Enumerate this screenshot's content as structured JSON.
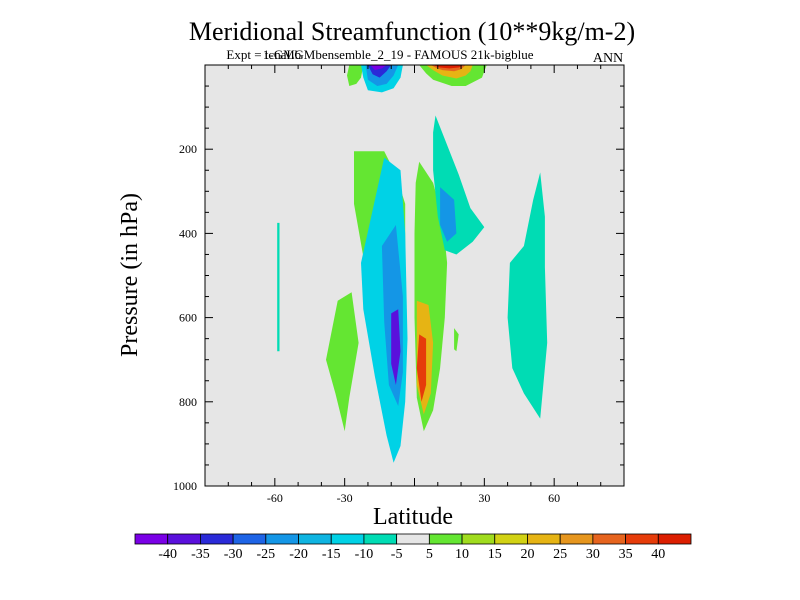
{
  "chart_data": {
    "type": "contour",
    "title": "Meridional Streamfunction (10**9kg/m-2)",
    "subtitle": "Expt = tcnaLGMbensemble_2_19 - FAMOUS 21k-bigblue",
    "subtitle_overlap": "1-GMb",
    "season": "ANN",
    "xlabel": "Latitude",
    "ylabel": "Pressure (in hPa)",
    "xlim": [
      -90,
      90
    ],
    "ylim": [
      1000,
      0
    ],
    "x_ticks": [
      -60,
      -30,
      0,
      30,
      60
    ],
    "x_tick_labels": [
      "-60",
      "-30",
      "",
      "30",
      "60"
    ],
    "y_ticks": [
      200,
      400,
      600,
      800,
      1000
    ],
    "y_tick_labels": [
      "200",
      "400",
      "600",
      "800",
      "1000"
    ],
    "colorbar": {
      "levels": [
        -40,
        -35,
        -30,
        -25,
        -20,
        -15,
        -10,
        -5,
        5,
        10,
        15,
        20,
        25,
        30,
        35,
        40
      ],
      "labels": [
        "-40",
        "-35",
        "-30",
        "-25",
        "-20",
        "-15",
        "-10",
        "-5",
        "5",
        "10",
        "15",
        "20",
        "25",
        "30",
        "35",
        "40"
      ],
      "colors": [
        "#7a00e6",
        "#5a10dc",
        "#2a2ad8",
        "#1e64e6",
        "#1496e6",
        "#0fb4e1",
        "#00d2e6",
        "#00dcb4",
        "#e6e6e6",
        "#64e632",
        "#a0dc1e",
        "#d2d214",
        "#e6b414",
        "#e6961e",
        "#e6641e",
        "#e63c0a",
        "#dc1e00"
      ]
    },
    "regions": [
      {
        "name": "southern-upper-cell-positive",
        "level_index": 9,
        "points": [
          [
            -28,
            0
          ],
          [
            -22,
            0
          ],
          [
            -23,
            30
          ],
          [
            -25,
            45
          ],
          [
            -28,
            50
          ],
          [
            -29,
            25
          ]
        ]
      },
      {
        "name": "southern-upper-cell",
        "level_index": 6,
        "points": [
          [
            -23,
            0
          ],
          [
            -5,
            0
          ],
          [
            -6,
            30
          ],
          [
            -9,
            55
          ],
          [
            -14,
            65
          ],
          [
            -20,
            60
          ],
          [
            -22,
            30
          ]
        ]
      },
      {
        "name": "southern-upper-cell",
        "level_index": 4,
        "points": [
          [
            -21,
            0
          ],
          [
            -7,
            0
          ],
          [
            -9,
            25
          ],
          [
            -12,
            45
          ],
          [
            -16,
            50
          ],
          [
            -20,
            35
          ]
        ]
      },
      {
        "name": "southern-upper-cell",
        "level_index": 2,
        "points": [
          [
            -20,
            0
          ],
          [
            -10,
            0
          ],
          [
            -12,
            15
          ],
          [
            -15,
            30
          ],
          [
            -18,
            22
          ]
        ]
      },
      {
        "name": "southern-upper-cell",
        "level_index": 0,
        "points": [
          [
            -19,
            0
          ],
          [
            -12,
            0
          ],
          [
            -14,
            8
          ],
          [
            -17,
            12
          ]
        ]
      },
      {
        "name": "northern-upper-cell",
        "level_index": 9,
        "points": [
          [
            2,
            0
          ],
          [
            31,
            0
          ],
          [
            30,
            15
          ],
          [
            29,
            30
          ],
          [
            22,
            50
          ],
          [
            16,
            50
          ],
          [
            8,
            35
          ],
          [
            5,
            20
          ]
        ]
      },
      {
        "name": "northern-upper-cell",
        "level_index": 12,
        "points": [
          [
            5,
            0
          ],
          [
            25,
            0
          ],
          [
            24,
            15
          ],
          [
            22,
            25
          ],
          [
            18,
            32
          ],
          [
            12,
            25
          ],
          [
            8,
            12
          ]
        ]
      },
      {
        "name": "northern-upper-cell",
        "level_index": 14,
        "points": [
          [
            7,
            0
          ],
          [
            22,
            0
          ],
          [
            20,
            10
          ],
          [
            17,
            15
          ],
          [
            12,
            12
          ],
          [
            9,
            6
          ]
        ]
      },
      {
        "name": "northern-upper-cell",
        "level_index": 16,
        "points": [
          [
            8,
            0
          ],
          [
            21,
            0
          ],
          [
            19,
            6
          ],
          [
            15,
            8
          ],
          [
            11,
            6
          ]
        ]
      },
      {
        "name": "southern-lower-cell-outer",
        "level_index": 9,
        "points": [
          [
            -26,
            205
          ],
          [
            -13,
            205
          ],
          [
            -8,
            260
          ],
          [
            -4,
            330
          ],
          [
            -4,
            560
          ],
          [
            -6,
            820
          ],
          [
            -11,
            850
          ],
          [
            -14,
            745
          ],
          [
            -22,
            455
          ],
          [
            -26,
            330
          ]
        ]
      },
      {
        "name": "southern-lower-cell-flank",
        "level_index": 9,
        "points": [
          [
            -38,
            700
          ],
          [
            -33,
            560
          ],
          [
            -27,
            540
          ],
          [
            -24,
            660
          ],
          [
            -28,
            790
          ],
          [
            -30,
            870
          ],
          [
            -34,
            780
          ]
        ]
      },
      {
        "name": "southern-lower-cell",
        "level_index": 6,
        "points": [
          [
            -23,
            470
          ],
          [
            -13,
            220
          ],
          [
            -6,
            250
          ],
          [
            -4,
            400
          ],
          [
            -3,
            650
          ],
          [
            -4,
            800
          ],
          [
            -6,
            905
          ],
          [
            -9,
            945
          ],
          [
            -12,
            880
          ],
          [
            -17,
            740
          ],
          [
            -22,
            580
          ]
        ]
      },
      {
        "name": "southern-lower-cell",
        "level_index": 4,
        "points": [
          [
            -14,
            430
          ],
          [
            -8,
            380
          ],
          [
            -5,
            550
          ],
          [
            -5,
            730
          ],
          [
            -7,
            810
          ],
          [
            -11,
            760
          ],
          [
            -13,
            610
          ]
        ]
      },
      {
        "name": "southern-lower-cell",
        "level_index": 1,
        "points": [
          [
            -10,
            590
          ],
          [
            -7,
            580
          ],
          [
            -6,
            680
          ],
          [
            -8,
            760
          ],
          [
            -10,
            710
          ]
        ]
      },
      {
        "name": "northern-lower-cell-outer",
        "level_index": 9,
        "points": [
          [
            2,
            230
          ],
          [
            8,
            280
          ],
          [
            12,
            360
          ],
          [
            14,
            470
          ],
          [
            13,
            600
          ],
          [
            11,
            720
          ],
          [
            8,
            820
          ],
          [
            4,
            870
          ],
          [
            1,
            790
          ],
          [
            0,
            600
          ],
          [
            0,
            400
          ],
          [
            0.5,
            280
          ]
        ]
      },
      {
        "name": "northern-lower-cell",
        "level_index": 12,
        "points": [
          [
            1,
            560
          ],
          [
            6,
            570
          ],
          [
            8,
            660
          ],
          [
            7,
            780
          ],
          [
            4,
            830
          ],
          [
            1,
            760
          ]
        ]
      },
      {
        "name": "northern-lower-cell",
        "level_index": 15,
        "points": [
          [
            2,
            640
          ],
          [
            5,
            650
          ],
          [
            5,
            760
          ],
          [
            3,
            800
          ],
          [
            1,
            720
          ]
        ]
      },
      {
        "name": "northern-subtropical-cell",
        "level_index": 7,
        "points": [
          [
            9,
            120
          ],
          [
            19,
            260
          ],
          [
            24,
            340
          ],
          [
            30,
            385
          ],
          [
            25,
            420
          ],
          [
            18,
            450
          ],
          [
            13,
            440
          ],
          [
            10,
            360
          ],
          [
            8,
            250
          ],
          [
            8,
            160
          ]
        ]
      },
      {
        "name": "northern-subtropical-cell",
        "level_index": 4,
        "points": [
          [
            11,
            290
          ],
          [
            17,
            320
          ],
          [
            18,
            400
          ],
          [
            14,
            420
          ],
          [
            11,
            380
          ]
        ]
      },
      {
        "name": "northern-midlat-cell",
        "level_index": 7,
        "points": [
          [
            41,
            470
          ],
          [
            47,
            430
          ],
          [
            51,
            320
          ],
          [
            54,
            255
          ],
          [
            56,
            360
          ],
          [
            56,
            480
          ],
          [
            57,
            660
          ],
          [
            54,
            840
          ],
          [
            47,
            780
          ],
          [
            42,
            720
          ],
          [
            40,
            600
          ]
        ]
      },
      {
        "name": "northern-small-positive",
        "level_index": 9,
        "points": [
          [
            17,
            625
          ],
          [
            19,
            640
          ],
          [
            18,
            680
          ],
          [
            17,
            675
          ]
        ]
      },
      {
        "name": "southern-polar-filament",
        "level_index": 7,
        "points": [
          [
            -59,
            375
          ],
          [
            -58,
            375
          ],
          [
            -58,
            680
          ],
          [
            -59,
            680
          ]
        ]
      }
    ]
  }
}
